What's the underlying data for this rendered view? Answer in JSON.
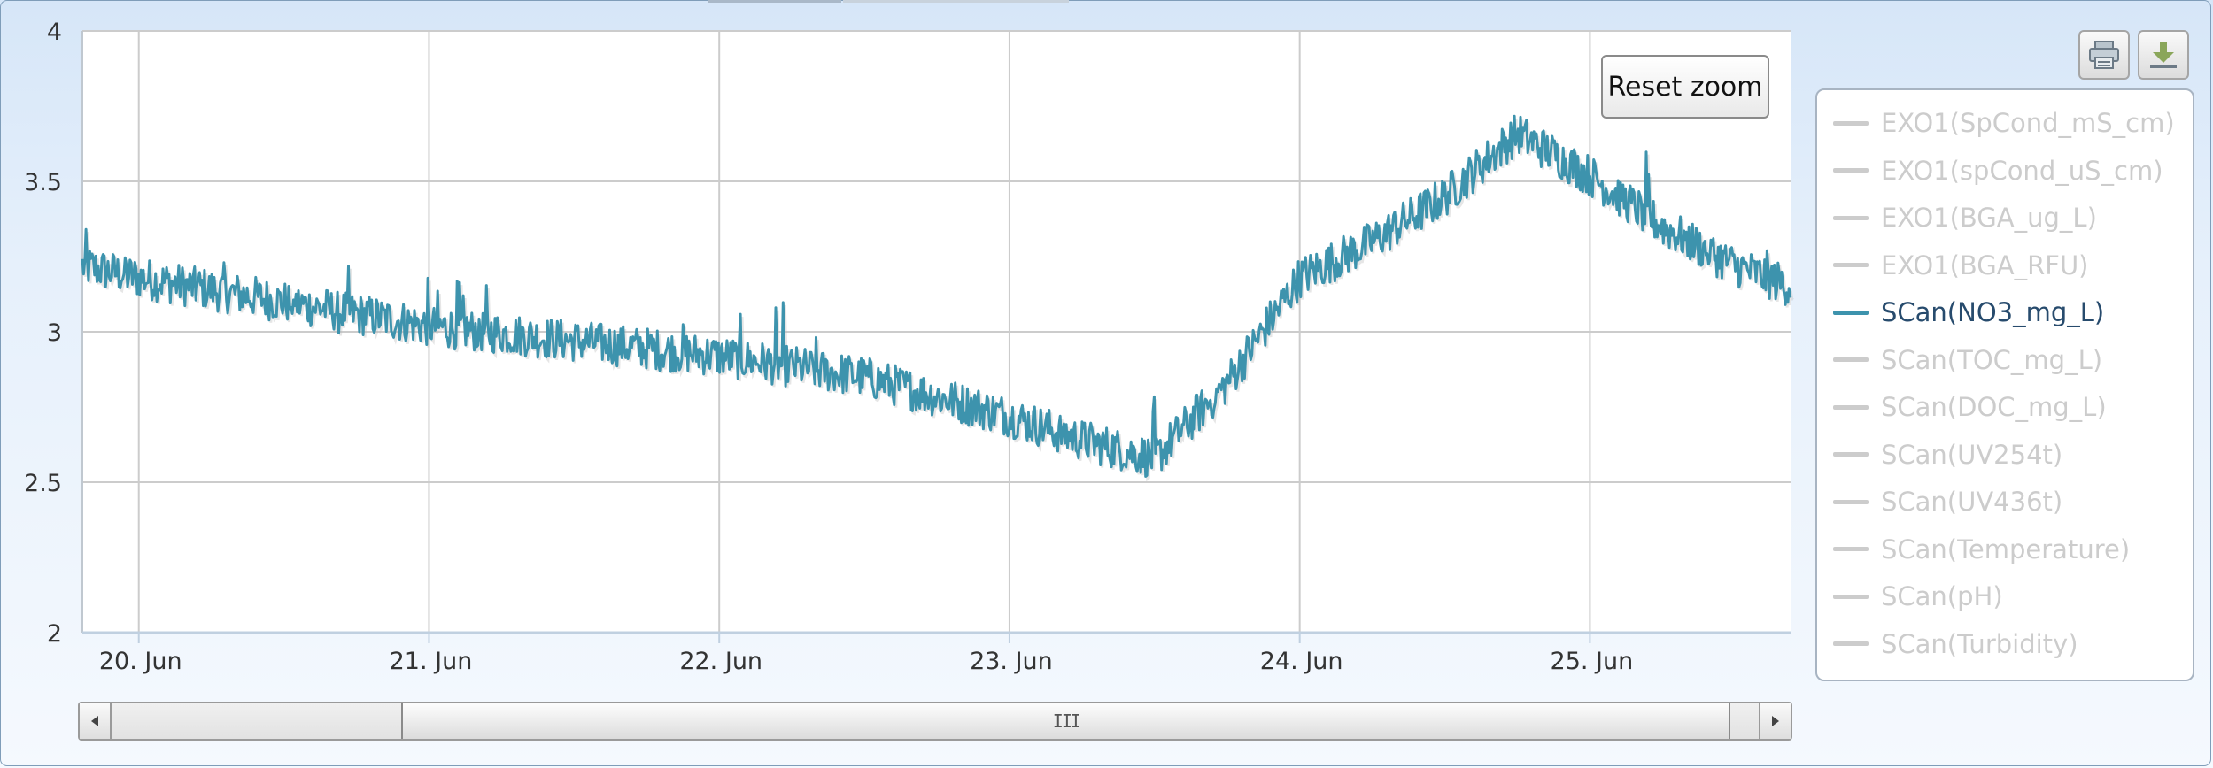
{
  "toolbar": {
    "reset_zoom_label": "Reset zoom",
    "print_icon": "printer-icon",
    "download_icon": "download-icon"
  },
  "colors": {
    "series": "#3d93ad",
    "legend_active_text": "#274b6d",
    "legend_inactive": "#cccccc",
    "grid": "#cccccc"
  },
  "legend": {
    "items": [
      {
        "label": "EXO1(SpCond_mS_cm)",
        "active": false
      },
      {
        "label": "EXO1(spCond_uS_cm)",
        "active": false
      },
      {
        "label": "EXO1(BGA_ug_L)",
        "active": false
      },
      {
        "label": "EXO1(BGA_RFU)",
        "active": false
      },
      {
        "label": "SCan(NO3_mg_L)",
        "active": true
      },
      {
        "label": "SCan(TOC_mg_L)",
        "active": false
      },
      {
        "label": "SCan(DOC_mg_L)",
        "active": false
      },
      {
        "label": "SCan(UV254t)",
        "active": false
      },
      {
        "label": "SCan(UV436t)",
        "active": false
      },
      {
        "label": "SCan(Temperature)",
        "active": false
      },
      {
        "label": "SCan(pH)",
        "active": false
      },
      {
        "label": "SCan(Turbidity)",
        "active": false
      }
    ]
  },
  "navigator": {
    "grip": "III",
    "window_start": 0.176,
    "window_end": 0.983
  },
  "chart_data": {
    "type": "line",
    "ylim": [
      2,
      4
    ],
    "yticks": [
      {
        "value": 2,
        "label": "2"
      },
      {
        "value": 2.5,
        "label": "2.5"
      },
      {
        "value": 3,
        "label": "3"
      },
      {
        "value": 3.5,
        "label": "3.5"
      },
      {
        "value": 4,
        "label": "4"
      }
    ],
    "xlim": [
      "2018-06-19T19:20",
      "2018-06-25T16:40"
    ],
    "xticks": [
      {
        "value": "2018-06-20T00:00",
        "label": "20. Jun"
      },
      {
        "value": "2018-06-21T00:00",
        "label": "21. Jun"
      },
      {
        "value": "2018-06-22T00:00",
        "label": "22. Jun"
      },
      {
        "value": "2018-06-23T00:00",
        "label": "23. Jun"
      },
      {
        "value": "2018-06-24T00:00",
        "label": "24. Jun"
      },
      {
        "value": "2018-06-25T00:00",
        "label": "25. Jun"
      }
    ],
    "grid": true,
    "legend_position": "right",
    "series": [
      {
        "name": "SCan(NO3_mg_L)",
        "noisy": true,
        "x": [
          "2018-06-19T19:20",
          "2018-06-20T00:00",
          "2018-06-20T12:00",
          "2018-06-21T00:00",
          "2018-06-21T12:00",
          "2018-06-22T00:00",
          "2018-06-22T12:00",
          "2018-06-23T00:00",
          "2018-06-23T06:00",
          "2018-06-23T12:00",
          "2018-06-23T18:00",
          "2018-06-24T00:00",
          "2018-06-24T06:00",
          "2018-06-24T12:00",
          "2018-06-24T18:00",
          "2018-06-25T00:00",
          "2018-06-25T06:00",
          "2018-06-25T12:00",
          "2018-06-25T16:40"
        ],
        "y": [
          3.22,
          3.18,
          3.1,
          3.02,
          2.97,
          2.92,
          2.85,
          2.72,
          2.64,
          2.58,
          2.83,
          3.18,
          3.3,
          3.45,
          3.66,
          3.52,
          3.35,
          3.22,
          3.15
        ]
      }
    ]
  }
}
